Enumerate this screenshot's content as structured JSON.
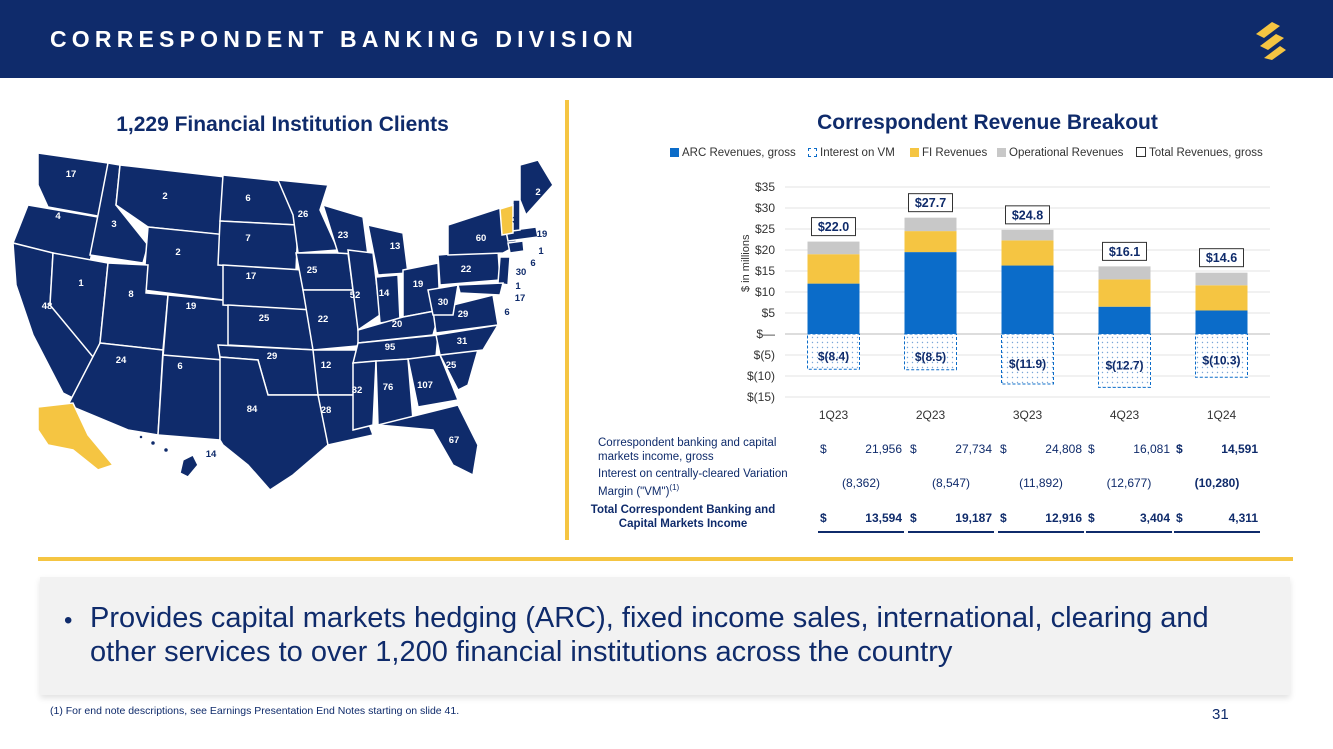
{
  "header": {
    "title": "CORRESPONDENT BANKING DIVISION",
    "logo_icon": "company-logo-icon"
  },
  "colors": {
    "navy": "#0f2b6b",
    "blue": "#0b6cc9",
    "yellow": "#f5c542",
    "gray": "#c8c8c8"
  },
  "map": {
    "title": "1,229 Financial Institution Clients",
    "state_counts": [
      "17",
      "4",
      "3",
      "2",
      "6",
      "26",
      "23",
      "13",
      "60",
      "2",
      "3",
      "19",
      "1",
      "6",
      "30",
      "1",
      "17",
      "6",
      "22",
      "48",
      "1",
      "8",
      "2",
      "7",
      "17",
      "25",
      "52",
      "14",
      "19",
      "30",
      "29",
      "20",
      "19",
      "25",
      "22",
      "95",
      "31",
      "25",
      "24",
      "6",
      "29",
      "12",
      "32",
      "76",
      "107",
      "84",
      "28",
      "67",
      "14"
    ]
  },
  "chart_data": {
    "type": "bar",
    "title": "Correspondent Revenue Breakout",
    "ylabel": "$ in millions",
    "categories": [
      "1Q23",
      "2Q23",
      "3Q23",
      "4Q23",
      "1Q24"
    ],
    "ylim": [
      -15,
      35
    ],
    "yticks": [
      "$35",
      "$30",
      "$25",
      "$20",
      "$15",
      "$10",
      "$5",
      "$—",
      "$(5)",
      "$(10)",
      "$(15)"
    ],
    "legend_position": "top",
    "series": [
      {
        "name": "ARC Revenues, gross",
        "values": [
          12.0,
          19.5,
          16.3,
          6.5,
          5.6
        ]
      },
      {
        "name": "Interest on VM",
        "values": [
          -8.4,
          -8.5,
          -11.9,
          -12.7,
          -10.3
        ]
      },
      {
        "name": "FI Revenues",
        "values": [
          7.0,
          5.0,
          6.0,
          6.5,
          6.0
        ]
      },
      {
        "name": "Operational Revenues",
        "values": [
          3.0,
          3.2,
          2.5,
          3.1,
          3.0
        ]
      },
      {
        "name": "Total Revenues, gross",
        "values": [
          22.0,
          27.7,
          24.8,
          16.1,
          14.6
        ]
      }
    ],
    "total_labels": [
      "$22.0",
      "$27.7",
      "$24.8",
      "$16.1",
      "$14.6"
    ],
    "vm_labels": [
      "$(8.4)",
      "$(8.5)",
      "$(11.9)",
      "$(12.7)",
      "$(10.3)"
    ]
  },
  "table": {
    "rows": [
      {
        "label": "Correspondent banking and capital markets income, gross",
        "values": [
          [
            "$",
            "21,956"
          ],
          [
            "$",
            "27,734"
          ],
          [
            "$",
            "24,808"
          ],
          [
            "$",
            "16,081"
          ],
          [
            "$",
            "14,591"
          ]
        ]
      },
      {
        "label": "Interest on centrally-cleared Variation Margin (\"VM\")",
        "sup": "(1)",
        "values": [
          [
            "",
            "(8,362)"
          ],
          [
            "",
            "(8,547)"
          ],
          [
            "",
            "(11,892)"
          ],
          [
            "",
            "(12,677)"
          ],
          [
            "",
            "(10,280)"
          ]
        ]
      },
      {
        "label": "Total Correspondent Banking and Capital Markets Income",
        "values": [
          [
            "$",
            "13,594"
          ],
          [
            "$",
            "19,187"
          ],
          [
            "$",
            "12,916"
          ],
          [
            "$",
            "3,404"
          ],
          [
            "$",
            "4,311"
          ]
        ]
      }
    ]
  },
  "bullet": {
    "text": "Provides capital markets hedging (ARC), fixed income sales, international, clearing and other services to over 1,200 financial institutions across the country"
  },
  "footnote": "(1)   For end note descriptions, see Earnings Presentation End Notes starting on slide 41.",
  "page_number": "31"
}
